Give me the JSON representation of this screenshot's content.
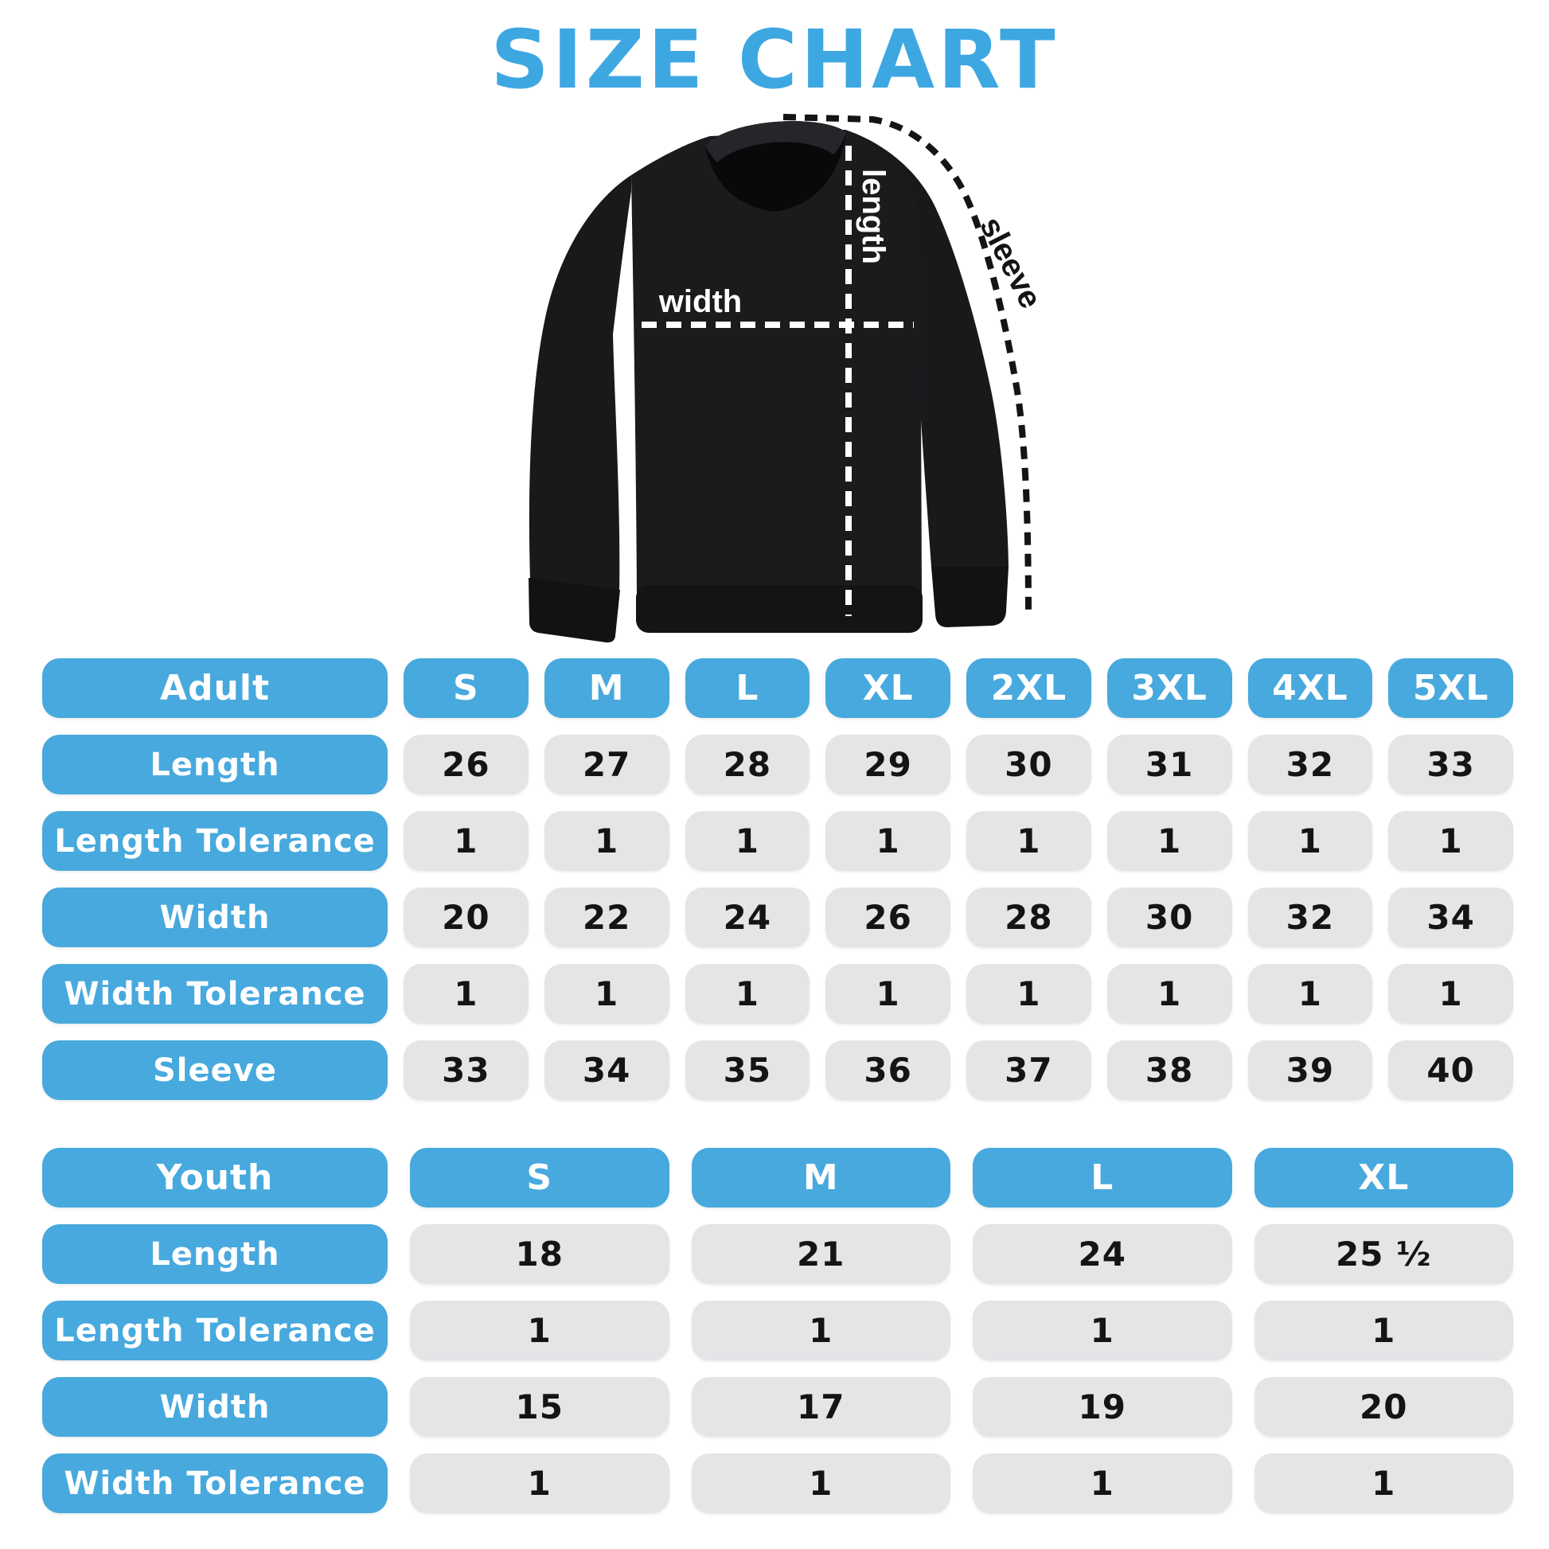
{
  "title": "SIZE CHART",
  "colors": {
    "accent": "#47a9dd",
    "title_blue": "#3da7e2",
    "cell_gray": "#e4e5e7",
    "value_text": "#141414",
    "shirt_black": "#1b1b1e"
  },
  "figure": {
    "width_label": "width",
    "length_label": "length",
    "sleeve_label": "sleeve"
  },
  "chart_data": [
    {
      "type": "table",
      "name": "adult",
      "header": [
        "Adult",
        "S",
        "M",
        "L",
        "XL",
        "2XL",
        "3XL",
        "4XL",
        "5XL"
      ],
      "rows": [
        [
          "Length",
          "26",
          "27",
          "28",
          "29",
          "30",
          "31",
          "32",
          "33"
        ],
        [
          "Length Tolerance",
          "1",
          "1",
          "1",
          "1",
          "1",
          "1",
          "1",
          "1"
        ],
        [
          "Width",
          "20",
          "22",
          "24",
          "26",
          "28",
          "30",
          "32",
          "34"
        ],
        [
          "Width Tolerance",
          "1",
          "1",
          "1",
          "1",
          "1",
          "1",
          "1",
          "1"
        ],
        [
          "Sleeve",
          "33",
          "34",
          "35",
          "36",
          "37",
          "38",
          "39",
          "40"
        ]
      ]
    },
    {
      "type": "table",
      "name": "youth",
      "header": [
        "Youth",
        "S",
        "M",
        "L",
        "XL"
      ],
      "rows": [
        [
          "Length",
          "18",
          "21",
          "24",
          "25 ½"
        ],
        [
          "Length Tolerance",
          "1",
          "1",
          "1",
          "1"
        ],
        [
          "Width",
          "15",
          "17",
          "19",
          "20"
        ],
        [
          "Width Tolerance",
          "1",
          "1",
          "1",
          "1"
        ]
      ]
    }
  ]
}
